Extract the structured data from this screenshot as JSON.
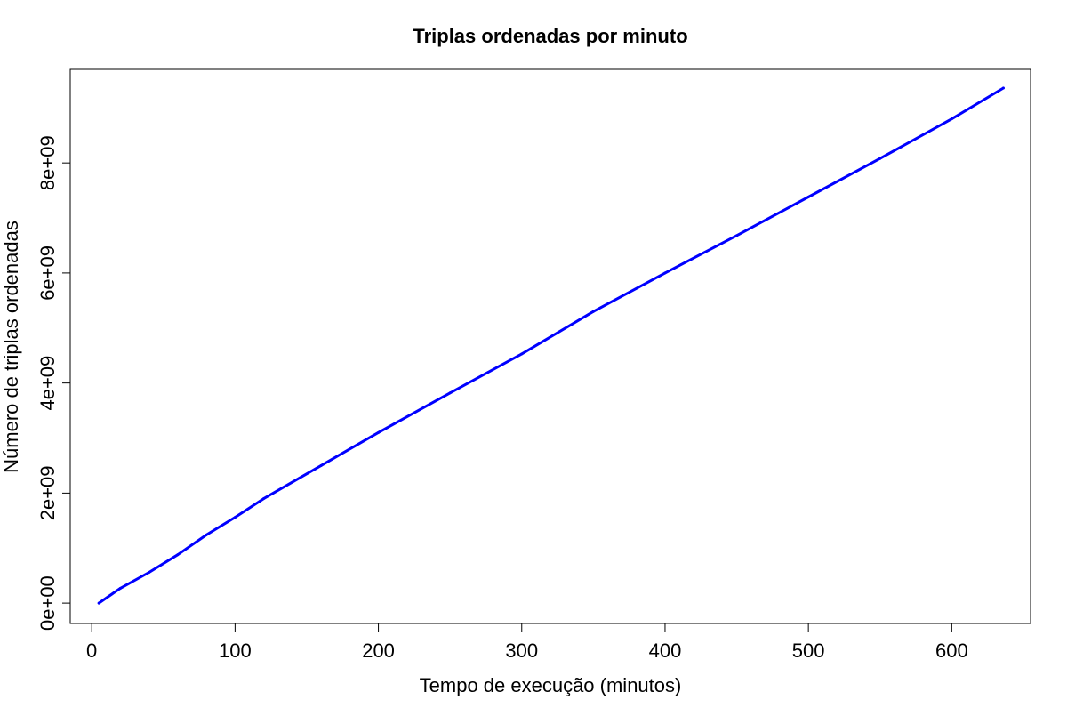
{
  "chart_data": {
    "type": "line",
    "title": "Triplas ordenadas por minuto",
    "xlabel": "Tempo de execução (minutos)",
    "ylabel": "Número de triplas ordenadas",
    "xlim": [
      -15,
      655
    ],
    "ylim": [
      -370000000.0,
      9700000000.0
    ],
    "x_ticks": [
      0,
      100,
      200,
      300,
      400,
      500,
      600
    ],
    "x_tick_labels": [
      "0",
      "100",
      "200",
      "300",
      "400",
      "500",
      "600"
    ],
    "y_ticks": [
      0,
      2000000000,
      4000000000,
      6000000000,
      8000000000
    ],
    "y_tick_labels": [
      "0e+00",
      "2e+09",
      "4e+09",
      "6e+09",
      "8e+09"
    ],
    "grid": false,
    "color": "#0000ff",
    "series": [
      {
        "x": [
          5,
          20,
          40,
          60,
          80,
          100,
          120,
          160,
          200,
          250,
          300,
          350,
          400,
          450,
          500,
          550,
          600,
          636
        ],
        "y": [
          0,
          270000000,
          560000000,
          880000000,
          1240000000,
          1560000000,
          1900000000,
          2500000000,
          3100000000,
          3820000000,
          4530000000,
          5300000000,
          6000000000,
          6680000000,
          7380000000,
          8080000000,
          8800000000,
          9360000000
        ]
      }
    ]
  }
}
